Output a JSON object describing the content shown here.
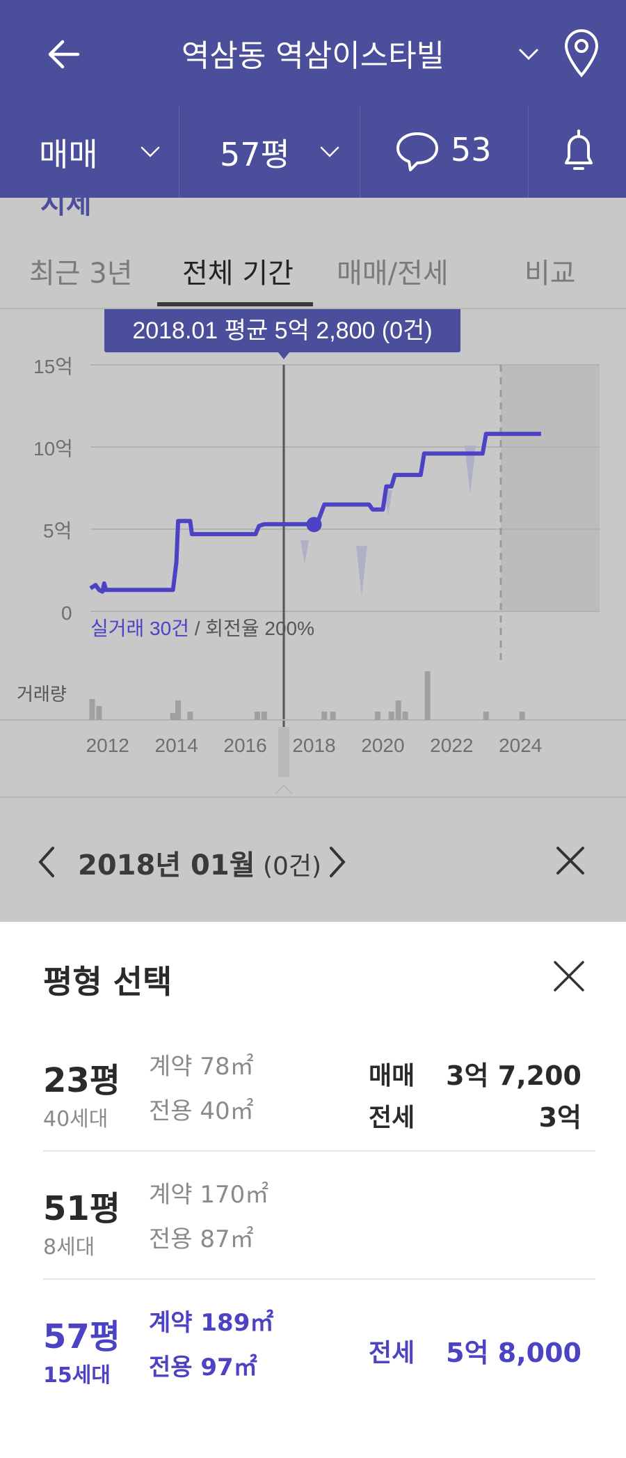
{
  "header": {
    "title": "역삼동 역삼이스타빌",
    "back_icon": "arrow-left-icon",
    "location_icon": "map-pin-icon",
    "dropdown_icon": "chevron-down-icon"
  },
  "filters": {
    "trade_type": "매매",
    "size": "57평",
    "comment_count": "53",
    "comment_icon": "speech-bubble-icon",
    "alert_icon": "bell-icon"
  },
  "cut_text": "시세",
  "tabs": [
    {
      "label": "최근 3년",
      "active": false
    },
    {
      "label": "전체 기간",
      "active": true
    },
    {
      "label": "매매/전세",
      "active": false
    },
    {
      "label": "비교",
      "active": false
    }
  ],
  "tooltip": "2018.01 평균 5억 2,800 (0건)",
  "chart_data": {
    "type": "line",
    "y_ticks": [
      "15억",
      "10억",
      "5억",
      "0"
    ],
    "ylim": [
      0,
      15
    ],
    "x_ticks": [
      "2012",
      "2014",
      "2016",
      "2018",
      "2020",
      "2022",
      "2024"
    ],
    "xlim": [
      2011.5,
      2026.3
    ],
    "series": [
      {
        "values_unit": "억",
        "points": [
          [
            2011.5,
            1.4
          ],
          [
            2011.65,
            1.6
          ],
          [
            2011.75,
            1.3
          ],
          [
            2011.85,
            1.2
          ],
          [
            2011.9,
            1.7
          ],
          [
            2011.95,
            1.3
          ],
          [
            2012.1,
            1.3
          ],
          [
            2013.9,
            1.3
          ],
          [
            2014.0,
            3.0
          ],
          [
            2014.05,
            5.5
          ],
          [
            2014.4,
            5.5
          ],
          [
            2014.45,
            4.7
          ],
          [
            2016.3,
            4.7
          ],
          [
            2016.4,
            5.2
          ],
          [
            2016.55,
            5.3
          ],
          [
            2017.2,
            5.3
          ],
          [
            2017.95,
            5.3
          ],
          [
            2018.1,
            5.4
          ],
          [
            2018.3,
            6.5
          ],
          [
            2019.6,
            6.5
          ],
          [
            2019.7,
            6.2
          ],
          [
            2020.0,
            6.2
          ],
          [
            2020.1,
            7.6
          ],
          [
            2020.25,
            7.6
          ],
          [
            2020.35,
            8.3
          ],
          [
            2021.1,
            8.3
          ],
          [
            2021.2,
            9.6
          ],
          [
            2022.9,
            9.6
          ],
          [
            2023.0,
            10.8
          ],
          [
            2024.6,
            10.8
          ]
        ]
      }
    ],
    "selected_point": {
      "x": 2018.0,
      "y": 5.28
    },
    "transactions_label": "실거래 30건",
    "turnover_label": " / 회전율 200%",
    "volume_label": "거래량",
    "volume_bars": [
      {
        "x": 2011.55,
        "v": 30
      },
      {
        "x": 2011.75,
        "v": 20
      },
      {
        "x": 2013.9,
        "v": 10
      },
      {
        "x": 2014.05,
        "v": 28
      },
      {
        "x": 2014.4,
        "v": 12
      },
      {
        "x": 2016.35,
        "v": 12
      },
      {
        "x": 2016.55,
        "v": 12
      },
      {
        "x": 2018.3,
        "v": 12
      },
      {
        "x": 2018.55,
        "v": 12
      },
      {
        "x": 2019.85,
        "v": 12
      },
      {
        "x": 2020.25,
        "v": 12
      },
      {
        "x": 2020.45,
        "v": 28
      },
      {
        "x": 2020.65,
        "v": 12
      },
      {
        "x": 2021.3,
        "v": 70
      },
      {
        "x": 2023.0,
        "v": 12
      },
      {
        "x": 2024.05,
        "v": 12
      }
    ]
  },
  "date_nav": {
    "prev_icon": "chevron-left-icon",
    "date_label": "2018년 01월",
    "count_label": " (0건)",
    "next_icon": "chevron-right-icon",
    "close_icon": "close-icon"
  },
  "sheet": {
    "title": "평형 선택",
    "close_icon": "close-icon",
    "rows": [
      {
        "pyeong": "23평",
        "households": "40세대",
        "contract": "계약 78㎡",
        "exclusive": "전용 40㎡",
        "trade_label": "매매",
        "trade_price": "3억 7,200",
        "lease_label": "전세",
        "lease_price": "3억"
      },
      {
        "pyeong": "51평",
        "households": "8세대",
        "contract": "계약 170㎡",
        "exclusive": "전용 87㎡"
      },
      {
        "pyeong": "57평",
        "households": "15세대",
        "contract": "계약 189㎡",
        "exclusive": "전용 97㎡",
        "lease_label": "전세",
        "lease_price": "5억 8,000"
      }
    ]
  },
  "colors": {
    "brand": "#4b4e9a",
    "line": "#4b43c3",
    "dim_bg": "#c8c8c8"
  }
}
